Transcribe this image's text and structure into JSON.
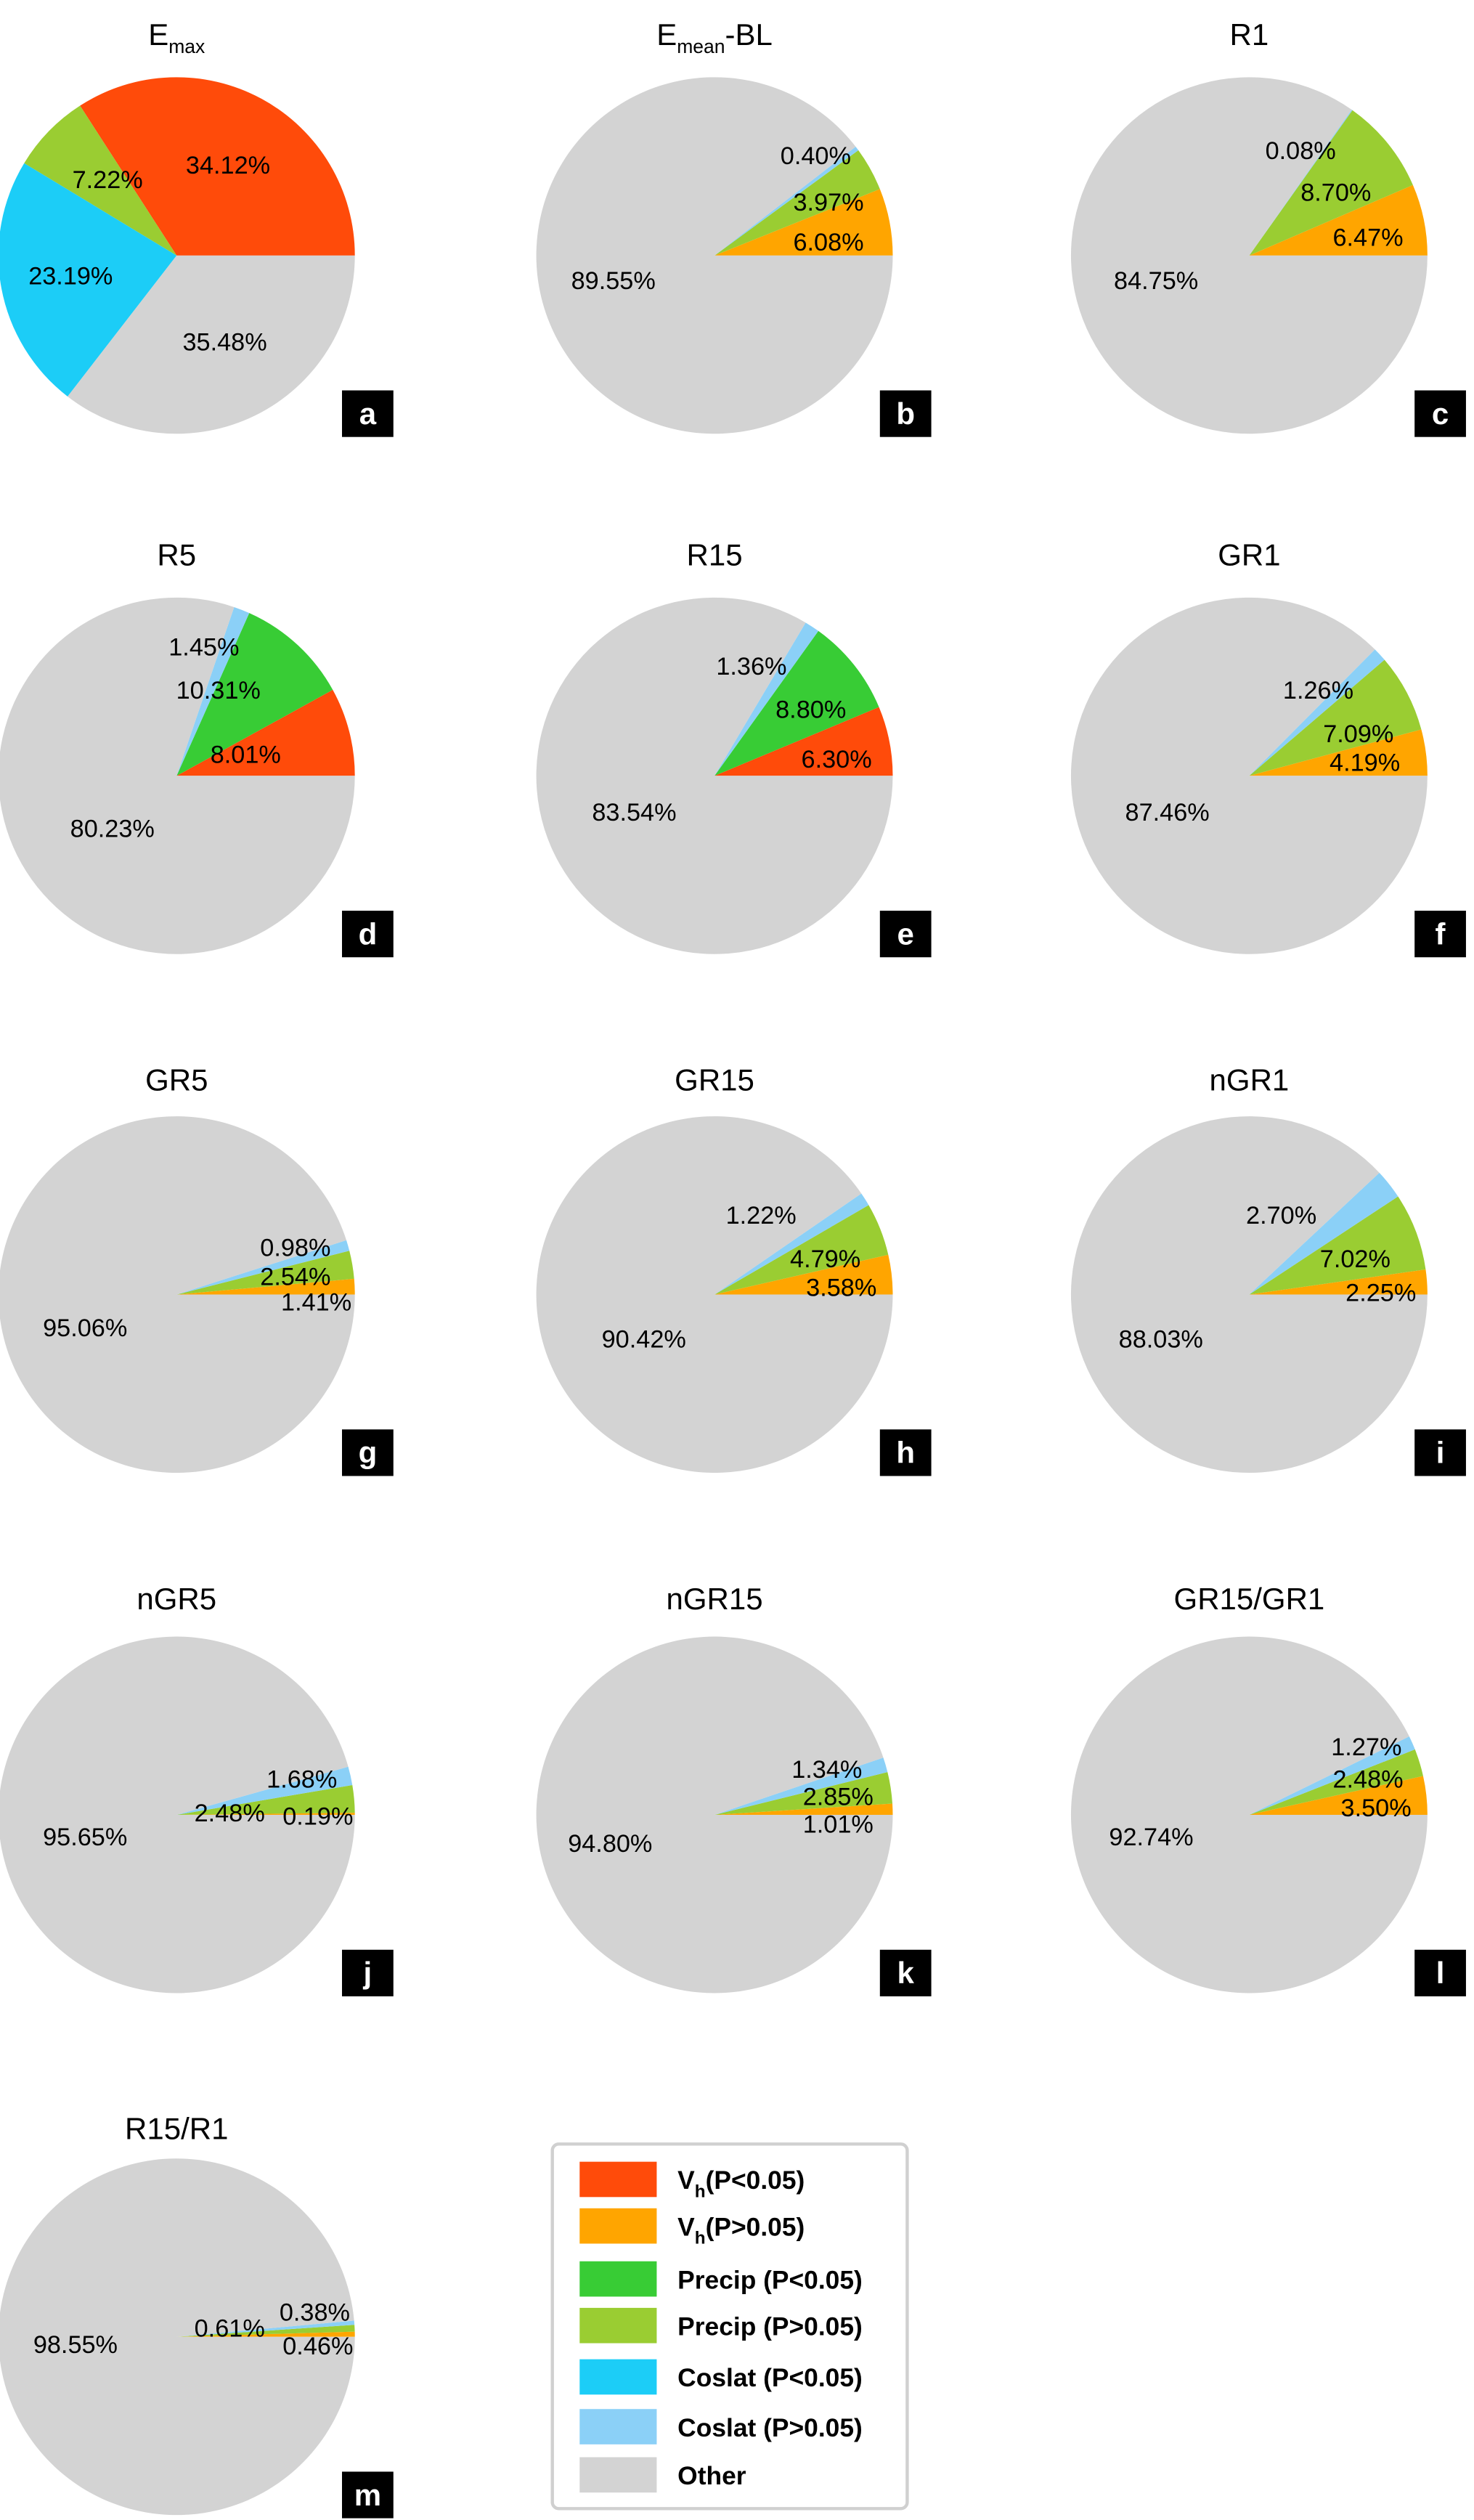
{
  "colors": {
    "vh_sig": "#ff4b0a",
    "vh_ns": "#ffa500",
    "precip_sig": "#38cc35",
    "precip_ns": "#9acd32",
    "coslat_sig": "#1ccdf7",
    "coslat_ns": "#8bd0f7",
    "other": "#d3d3d3"
  },
  "chart_data": [
    {
      "type": "pie",
      "panel": "a",
      "title": "E",
      "title_sub": "max",
      "title_suffix": "",
      "slices": [
        {
          "category": "vh_sig",
          "value": 34.12,
          "label": "34.12%"
        },
        {
          "category": "precip_ns",
          "value": 7.22,
          "label": "7.22%"
        },
        {
          "category": "coslat_sig",
          "value": 23.19,
          "label": "23.19%"
        },
        {
          "category": "other",
          "value": 35.48,
          "label": "35.48%"
        }
      ]
    },
    {
      "type": "pie",
      "panel": "b",
      "title": "E",
      "title_sub": "mean",
      "title_suffix": "-BL",
      "slices": [
        {
          "category": "vh_ns",
          "value": 6.08,
          "label": "6.08%"
        },
        {
          "category": "precip_ns",
          "value": 3.97,
          "label": "3.97%"
        },
        {
          "category": "coslat_ns",
          "value": 0.4,
          "label": "0.40%"
        },
        {
          "category": "other",
          "value": 89.55,
          "label": "89.55%"
        }
      ]
    },
    {
      "type": "pie",
      "panel": "c",
      "title": "R1",
      "slices": [
        {
          "category": "vh_ns",
          "value": 6.47,
          "label": "6.47%"
        },
        {
          "category": "precip_ns",
          "value": 8.7,
          "label": "8.70%"
        },
        {
          "category": "coslat_ns",
          "value": 0.08,
          "label": "0.08%"
        },
        {
          "category": "other",
          "value": 84.75,
          "label": "84.75%"
        }
      ]
    },
    {
      "type": "pie",
      "panel": "d",
      "title": "R5",
      "slices": [
        {
          "category": "vh_sig",
          "value": 8.01,
          "label": "8.01%"
        },
        {
          "category": "precip_sig",
          "value": 10.31,
          "label": "10.31%"
        },
        {
          "category": "coslat_ns",
          "value": 1.45,
          "label": "1.45%"
        },
        {
          "category": "other",
          "value": 80.23,
          "label": "80.23%"
        }
      ]
    },
    {
      "type": "pie",
      "panel": "e",
      "title": "R15",
      "slices": [
        {
          "category": "vh_sig",
          "value": 6.3,
          "label": "6.30%"
        },
        {
          "category": "precip_sig",
          "value": 8.8,
          "label": "8.80%"
        },
        {
          "category": "coslat_ns",
          "value": 1.36,
          "label": "1.36%"
        },
        {
          "category": "other",
          "value": 83.54,
          "label": "83.54%"
        }
      ]
    },
    {
      "type": "pie",
      "panel": "f",
      "title": "GR1",
      "slices": [
        {
          "category": "vh_ns",
          "value": 4.19,
          "label": "4.19%"
        },
        {
          "category": "precip_ns",
          "value": 7.09,
          "label": "7.09%"
        },
        {
          "category": "coslat_ns",
          "value": 1.26,
          "label": "1.26%"
        },
        {
          "category": "other",
          "value": 87.46,
          "label": "87.46%"
        }
      ]
    },
    {
      "type": "pie",
      "panel": "g",
      "title": "GR5",
      "slices": [
        {
          "category": "vh_ns",
          "value": 1.41,
          "label": "1.41%"
        },
        {
          "category": "precip_ns",
          "value": 2.54,
          "label": "2.54%"
        },
        {
          "category": "coslat_ns",
          "value": 0.98,
          "label": "0.98%"
        },
        {
          "category": "other",
          "value": 95.06,
          "label": "95.06%"
        }
      ]
    },
    {
      "type": "pie",
      "panel": "h",
      "title": "GR15",
      "slices": [
        {
          "category": "vh_ns",
          "value": 3.58,
          "label": "3.58%"
        },
        {
          "category": "precip_ns",
          "value": 4.79,
          "label": "4.79%"
        },
        {
          "category": "coslat_ns",
          "value": 1.22,
          "label": "1.22%"
        },
        {
          "category": "other",
          "value": 90.42,
          "label": "90.42%"
        }
      ]
    },
    {
      "type": "pie",
      "panel": "i",
      "title": "nGR1",
      "slices": [
        {
          "category": "vh_ns",
          "value": 2.25,
          "label": "2.25%"
        },
        {
          "category": "precip_ns",
          "value": 7.02,
          "label": "7.02%"
        },
        {
          "category": "coslat_ns",
          "value": 2.7,
          "label": "2.70%"
        },
        {
          "category": "other",
          "value": 88.03,
          "label": "88.03%"
        }
      ]
    },
    {
      "type": "pie",
      "panel": "j",
      "title": "nGR5",
      "slices": [
        {
          "category": "vh_ns",
          "value": 0.19,
          "label": "0.19%"
        },
        {
          "category": "precip_ns",
          "value": 2.48,
          "label": "2.48%"
        },
        {
          "category": "coslat_ns",
          "value": 1.68,
          "label": "1.68%"
        },
        {
          "category": "other",
          "value": 95.65,
          "label": "95.65%"
        }
      ]
    },
    {
      "type": "pie",
      "panel": "k",
      "title": "nGR15",
      "slices": [
        {
          "category": "vh_ns",
          "value": 1.01,
          "label": "1.01%"
        },
        {
          "category": "precip_ns",
          "value": 2.85,
          "label": "2.85%"
        },
        {
          "category": "coslat_ns",
          "value": 1.34,
          "label": "1.34%"
        },
        {
          "category": "other",
          "value": 94.8,
          "label": "94.80%"
        }
      ]
    },
    {
      "type": "pie",
      "panel": "l",
      "title": "GR15/GR1",
      "slices": [
        {
          "category": "vh_ns",
          "value": 3.5,
          "label": "3.50%"
        },
        {
          "category": "precip_ns",
          "value": 2.48,
          "label": "2.48%"
        },
        {
          "category": "coslat_ns",
          "value": 1.27,
          "label": "1.27%"
        },
        {
          "category": "other",
          "value": 92.74,
          "label": "92.74%"
        }
      ]
    },
    {
      "type": "pie",
      "panel": "m",
      "title": "R15/R1",
      "slices": [
        {
          "category": "vh_ns",
          "value": 0.46,
          "label": "0.46%"
        },
        {
          "category": "precip_ns",
          "value": 0.61,
          "label": "0.61%"
        },
        {
          "category": "coslat_ns",
          "value": 0.38,
          "label": "0.38%"
        },
        {
          "category": "other",
          "value": 98.55,
          "label": "98.55%"
        }
      ]
    }
  ],
  "legend": {
    "placement": "bottom-center",
    "entries": [
      {
        "category": "vh_sig",
        "main": "V",
        "sub": "h",
        "rest": "(P<0.05)"
      },
      {
        "category": "vh_ns",
        "main": "V",
        "sub": "h",
        "rest": "(P>0.05)"
      },
      {
        "category": "precip_sig",
        "main": "Precip (P<0.05)"
      },
      {
        "category": "precip_ns",
        "main": "Precip (P>0.05)"
      },
      {
        "category": "coslat_sig",
        "main": "Coslat (P<0.05)"
      },
      {
        "category": "coslat_ns",
        "main": "Coslat (P>0.05)"
      },
      {
        "category": "other",
        "main": "Other"
      }
    ]
  }
}
